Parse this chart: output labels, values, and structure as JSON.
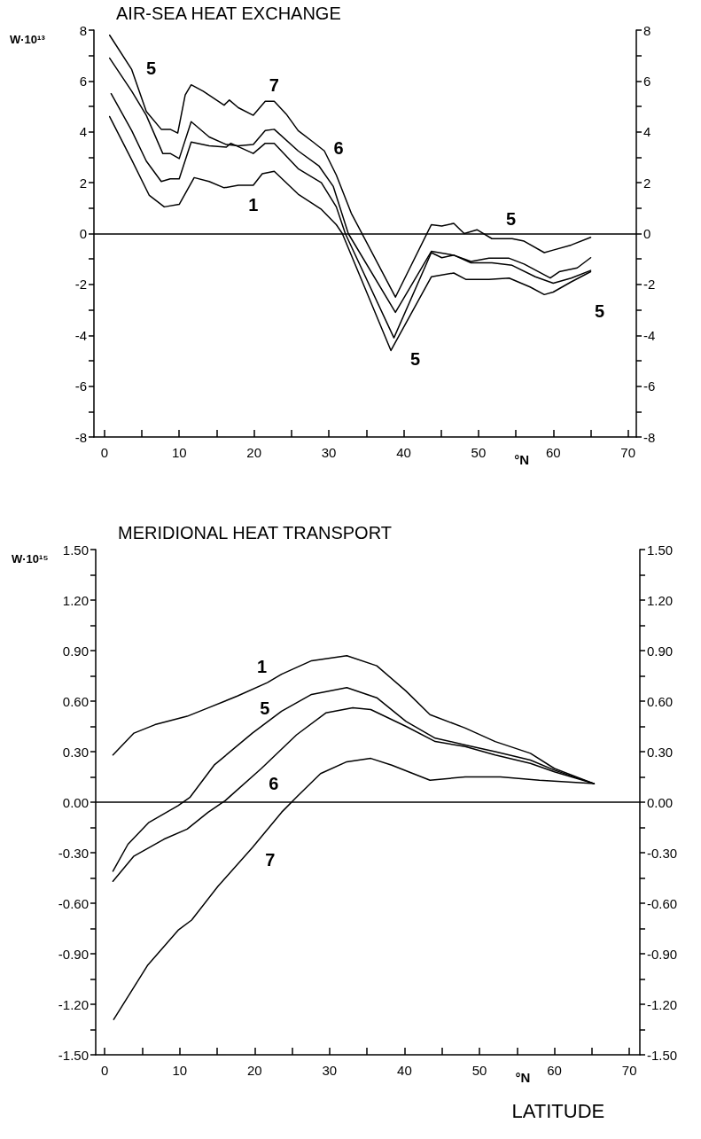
{
  "chart_data": [
    {
      "type": "line",
      "title": "AIR-SEA HEAT EXCHANGE",
      "ylabel": "W·10¹³",
      "xlabel": "°N",
      "xlim": [
        -1.4,
        71.1
      ],
      "ylim": [
        -8,
        8
      ],
      "y2lim": [
        -8,
        8
      ],
      "xticks": [
        0,
        {
          "value": 5,
          "label": null
        },
        10,
        {
          "value": 15,
          "label": null
        },
        20,
        {
          "value": 25,
          "label": null
        },
        30,
        {
          "value": 35,
          "label": null
        },
        40,
        {
          "value": 45,
          "label": null
        },
        50,
        {
          "value": 55,
          "label": null
        },
        60,
        {
          "value": 65,
          "label": null
        },
        70
      ],
      "yticks": [
        -8,
        {
          "value": -7,
          "label": null
        },
        -6,
        {
          "value": -5,
          "label": null
        },
        -4,
        {
          "value": -3,
          "label": null
        },
        -2,
        {
          "value": -1,
          "label": null
        },
        0,
        {
          "value": 1,
          "label": null
        },
        2,
        {
          "value": 3,
          "label": null
        },
        4,
        {
          "value": 5,
          "label": null
        },
        6,
        {
          "value": 7,
          "label": null
        },
        8
      ],
      "y2ticks": [
        -8,
        {
          "value": -7,
          "label": null
        },
        -6,
        {
          "value": -5,
          "label": null
        },
        -4,
        {
          "value": -3,
          "label": null
        },
        -2,
        {
          "value": -1,
          "label": null
        },
        0,
        {
          "value": 1,
          "label": null
        },
        2,
        {
          "value": 3,
          "label": null
        },
        4,
        {
          "value": 5,
          "label": null
        },
        6,
        {
          "value": 7,
          "label": null
        },
        8
      ],
      "grid": false,
      "marker": "none",
      "line_style": "solid",
      "ref_lines": [
        {
          "axis": "y",
          "value": 0,
          "label": null,
          "color": "#000000"
        }
      ],
      "series": [
        {
          "color": "#000000",
          "x": [
            0.7,
            3.65,
            5.6,
            7.6,
            8.8,
            9.8,
            10.8,
            11.6,
            13.2,
            16,
            16.7,
            17.9,
            19.9,
            21.5,
            22.7,
            24.3,
            25.9,
            27.9,
            29.4,
            31,
            33,
            38.9,
            43.7,
            45.1,
            46.7,
            48.1,
            49.8,
            51.8,
            54.5,
            56.1,
            58.8,
            60,
            62.4,
            65
          ],
          "values": [
            7.8,
            6.45,
            4.8,
            4.1,
            4.1,
            3.95,
            5.45,
            5.85,
            5.6,
            5.05,
            5.25,
            4.95,
            4.65,
            5.2,
            5.2,
            4.7,
            4.05,
            3.6,
            3.25,
            2.3,
            0.8,
            -2.5,
            0.35,
            0.3,
            0.4,
            0,
            0.15,
            -0.2,
            -0.2,
            -0.3,
            -0.75,
            -0.65,
            -0.45,
            -0.15
          ]
        },
        {
          "color": "#000000",
          "x": [
            0.7,
            3.65,
            5.6,
            7.8,
            8.8,
            10,
            11.6,
            14,
            16.3,
            17.9,
            19.9,
            21.5,
            22.7,
            25.9,
            28.7,
            30.6,
            32.6,
            38.9,
            43.7,
            46.7,
            49,
            51.4,
            54.1,
            56.1,
            59.6,
            60.8,
            63.2,
            65
          ],
          "values": [
            6.9,
            5.6,
            4.65,
            3.15,
            3.15,
            2.95,
            4.4,
            3.8,
            3.5,
            3.45,
            3.5,
            4.05,
            4.1,
            3.25,
            2.65,
            1.85,
            0,
            -3.1,
            -0.7,
            -0.85,
            -1.1,
            -0.97,
            -0.97,
            -1.2,
            -1.75,
            -1.5,
            -1.35,
            -0.95
          ]
        },
        {
          "color": "#000000",
          "x": [
            0.9,
            3.65,
            5.6,
            7.6,
            8.8,
            10,
            11.6,
            14,
            16.3,
            16.9,
            19.9,
            21.5,
            22.7,
            25.9,
            29,
            31,
            32.2,
            38.7,
            43.7,
            45.1,
            46.7,
            49,
            51.8,
            54.5,
            57.6,
            60,
            62.4,
            65
          ],
          "values": [
            5.5,
            4.05,
            2.85,
            2.05,
            2.15,
            2.15,
            3.6,
            3.45,
            3.4,
            3.55,
            3.15,
            3.55,
            3.55,
            2.55,
            2,
            1.05,
            0,
            -4.1,
            -0.75,
            -0.95,
            -0.85,
            -1.15,
            -1.15,
            -1.25,
            -1.7,
            -1.95,
            -1.75,
            -1.45
          ]
        },
        {
          "color": "#000000",
          "x": [
            0.7,
            3.65,
            6,
            8,
            10,
            12,
            14,
            16,
            17.9,
            19.9,
            21.1,
            22.7,
            25.9,
            29,
            31,
            31.8,
            38.3,
            43.7,
            46.7,
            48.3,
            51.4,
            54.1,
            56.9,
            58.8,
            60,
            62.4,
            65
          ],
          "values": [
            4.6,
            2.9,
            1.5,
            1.05,
            1.15,
            2.2,
            2.05,
            1.8,
            1.9,
            1.9,
            2.35,
            2.45,
            1.55,
            0.95,
            0.35,
            0,
            -4.6,
            -1.7,
            -1.55,
            -1.8,
            -1.8,
            -1.75,
            -2.1,
            -2.4,
            -2.3,
            -1.9,
            -1.5
          ]
        }
      ],
      "annotations": [
        {
          "text": "7",
          "x": 22.7,
          "y": 5.2
        },
        {
          "text": "6",
          "x": 28.7,
          "y": 2.65
        },
        {
          "text": "5",
          "x": 3.65,
          "y": 5.6
        },
        {
          "text": "1",
          "x": 19.9,
          "y": 1.9
        },
        {
          "text": "5",
          "x": 54.1,
          "y": -0.97
        },
        {
          "text": "5",
          "x": 38.7,
          "y": -4.1
        },
        {
          "text": "5",
          "x": 65,
          "y": -1.45
        }
      ]
    },
    {
      "type": "line",
      "title": "MERIDIONAL HEAT TRANSPORT",
      "ylabel": "W·10¹⁵",
      "xlabel": "°N",
      "xlim": [
        -1.2,
        71.4
      ],
      "ylim": [
        -1.5,
        1.5
      ],
      "y2lim": [
        -1.5,
        1.5
      ],
      "xticks": [
        0,
        {
          "value": 5,
          "label": null
        },
        10,
        {
          "value": 15,
          "label": null
        },
        20,
        {
          "value": 25,
          "label": null
        },
        30,
        {
          "value": 35,
          "label": null
        },
        40,
        {
          "value": 45,
          "label": null
        },
        50,
        {
          "value": 55,
          "label": null
        },
        60,
        {
          "value": 65,
          "label": null
        },
        70
      ],
      "yticks": [
        {
          "value": -1.5,
          "label": "-1.50"
        },
        {
          "value": -1.35,
          "label": null
        },
        {
          "value": -1.2,
          "label": "-1.20"
        },
        {
          "value": -1.05,
          "label": null
        },
        {
          "value": -0.9,
          "label": "-0.90"
        },
        {
          "value": -0.75,
          "label": null
        },
        {
          "value": -0.6,
          "label": "-0.60"
        },
        {
          "value": -0.45,
          "label": null
        },
        {
          "value": -0.3,
          "label": "-0.30"
        },
        {
          "value": -0.15,
          "label": null
        },
        {
          "value": 0,
          "label": "0.00"
        },
        {
          "value": 0.15,
          "label": null
        },
        {
          "value": 0.3,
          "label": "0.30"
        },
        {
          "value": 0.45,
          "label": null
        },
        {
          "value": 0.6,
          "label": "0.60"
        },
        {
          "value": 0.75,
          "label": null
        },
        {
          "value": 0.9,
          "label": "0.90"
        },
        {
          "value": 1.05,
          "label": null
        },
        {
          "value": 1.2,
          "label": "1.20"
        },
        {
          "value": 1.35,
          "label": null
        },
        {
          "value": 1.5,
          "label": "1.50"
        }
      ],
      "y2ticks": [
        {
          "value": -1.5,
          "label": "-1.50"
        },
        {
          "value": -1.35,
          "label": null
        },
        {
          "value": -1.2,
          "label": "-1.20"
        },
        {
          "value": -1.05,
          "label": null
        },
        {
          "value": -0.9,
          "label": "-0.90"
        },
        {
          "value": -0.75,
          "label": null
        },
        {
          "value": -0.6,
          "label": "-0.60"
        },
        {
          "value": -0.45,
          "label": null
        },
        {
          "value": -0.3,
          "label": "-0.30"
        },
        {
          "value": -0.15,
          "label": null
        },
        {
          "value": 0,
          "label": "0.00"
        },
        {
          "value": 0.15,
          "label": null
        },
        {
          "value": 0.3,
          "label": "0.30"
        },
        {
          "value": 0.45,
          "label": null
        },
        {
          "value": 0.6,
          "label": "0.60"
        },
        {
          "value": 0.75,
          "label": null
        },
        {
          "value": 0.9,
          "label": "0.90"
        },
        {
          "value": 1.05,
          "label": null
        },
        {
          "value": 1.2,
          "label": "1.20"
        },
        {
          "value": 1.35,
          "label": null
        },
        {
          "value": 1.5,
          "label": "1.50"
        }
      ],
      "grid": false,
      "marker": "none",
      "line_style": "solid",
      "ref_lines": [
        {
          "axis": "y",
          "value": 0,
          "label": null,
          "color": "#000000"
        }
      ],
      "series": [
        {
          "color": "#000000",
          "x": [
            1.1,
            3.9,
            6.7,
            11,
            13.8,
            17.7,
            21.7,
            23.6,
            27.6,
            32.3,
            36.3,
            40.2,
            43.4,
            48.1,
            52.1,
            56.8,
            60,
            65.3
          ],
          "values": [
            0.28,
            0.41,
            0.46,
            0.51,
            0.56,
            0.63,
            0.71,
            0.76,
            0.84,
            0.87,
            0.81,
            0.66,
            0.52,
            0.44,
            0.36,
            0.29,
            0.2,
            0.11
          ]
        },
        {
          "color": "#000000",
          "x": [
            1.1,
            3.1,
            5.9,
            9.8,
            11.4,
            14.6,
            19.7,
            23.6,
            27.6,
            32.3,
            36.3,
            40.2,
            44.1,
            48.1,
            52.1,
            56.8,
            60,
            65.3
          ],
          "values": [
            -0.41,
            -0.25,
            -0.12,
            -0.02,
            0.03,
            0.22,
            0.41,
            0.54,
            0.64,
            0.68,
            0.62,
            0.48,
            0.38,
            0.34,
            0.3,
            0.25,
            0.19,
            0.11
          ]
        },
        {
          "color": "#000000",
          "x": [
            1.1,
            3.9,
            7.9,
            11,
            13.8,
            16.1,
            20.9,
            25.6,
            29.5,
            33.1,
            35.5,
            40.2,
            44.1,
            48.1,
            52.1,
            56.8,
            60,
            65.3
          ],
          "values": [
            -0.47,
            -0.32,
            -0.22,
            -0.16,
            -0.06,
            0.01,
            0.2,
            0.4,
            0.53,
            0.56,
            0.55,
            0.45,
            0.36,
            0.33,
            0.28,
            0.23,
            0.18,
            0.11
          ]
        },
        {
          "color": "#000000",
          "x": [
            1.2,
            5.7,
            9.8,
            11.6,
            15.1,
            19.7,
            23.6,
            25.6,
            28.8,
            32.3,
            35.5,
            38.3,
            43.4,
            48.1,
            52.8,
            58,
            65.3
          ],
          "values": [
            -1.29,
            -0.97,
            -0.76,
            -0.7,
            -0.5,
            -0.27,
            -0.06,
            0.03,
            0.17,
            0.24,
            0.26,
            0.22,
            0.13,
            0.15,
            0.15,
            0.13,
            0.11
          ]
        }
      ],
      "annotations": [
        {
          "text": "1",
          "x": 21.7,
          "y": 0.71
        },
        {
          "text": "5",
          "x": 19.7,
          "y": 0.41
        },
        {
          "text": "6",
          "x": 20.9,
          "y": 0.2
        },
        {
          "text": "7",
          "x": 19.7,
          "y": -0.27
        },
        "LATITUDE"
      ]
    }
  ]
}
